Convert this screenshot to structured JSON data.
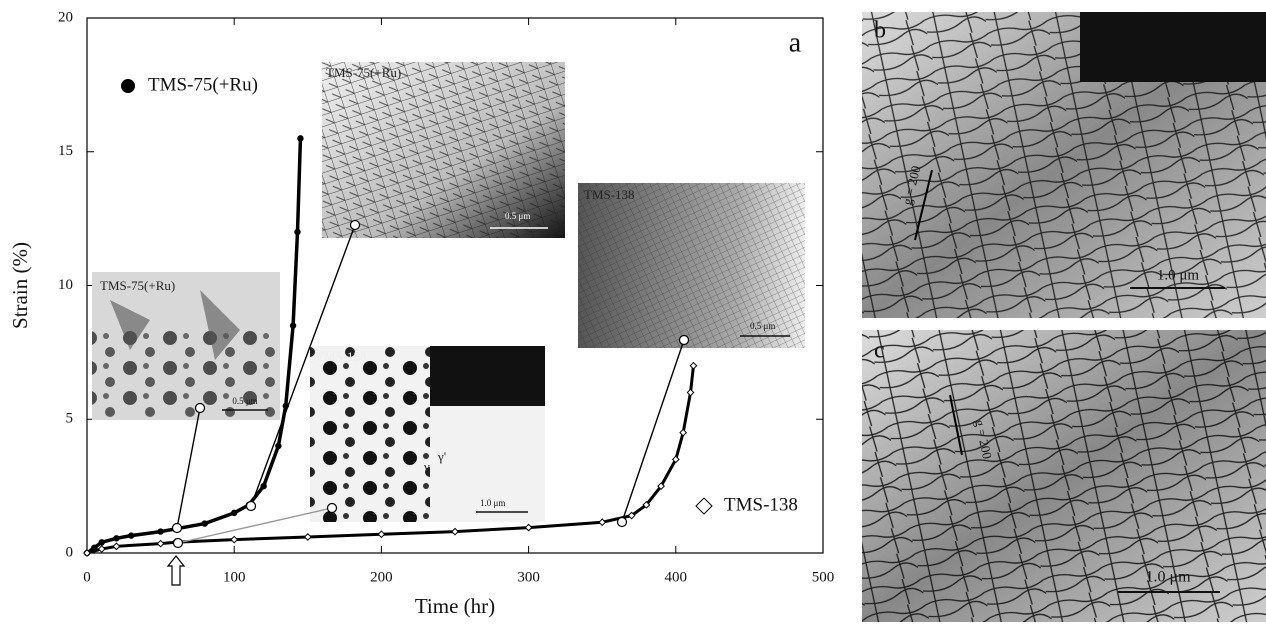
{
  "chart_data": {
    "type": "scatter",
    "panel_label": "a",
    "xlabel": "Time (hr)",
    "ylabel": "Strain (%)",
    "xlim": [
      0,
      500
    ],
    "ylim": [
      0,
      20
    ],
    "xticks": [
      0,
      100,
      200,
      300,
      400,
      500
    ],
    "yticks": [
      0,
      5,
      10,
      15,
      20
    ],
    "series": [
      {
        "name": "TMS-75(+Ru)",
        "color": "#000000",
        "marker": "circle",
        "x": [
          0,
          5,
          10,
          20,
          30,
          50,
          60,
          80,
          100,
          110,
          120,
          130,
          135,
          140,
          143,
          145
        ],
        "values": [
          0,
          0.2,
          0.4,
          0.55,
          0.65,
          0.8,
          0.9,
          1.1,
          1.5,
          1.8,
          2.5,
          4,
          5.5,
          8.5,
          12,
          15.5
        ]
      },
      {
        "name": "TMS-138",
        "color": "#000000",
        "marker": "diamond",
        "x": [
          0,
          10,
          20,
          50,
          60,
          100,
          150,
          200,
          250,
          300,
          350,
          370,
          380,
          390,
          400,
          405,
          410,
          412
        ],
        "values": [
          0,
          0.15,
          0.25,
          0.35,
          0.4,
          0.5,
          0.6,
          0.7,
          0.8,
          0.95,
          1.15,
          1.4,
          1.8,
          2.5,
          3.5,
          4.5,
          6,
          7
        ]
      }
    ]
  },
  "insets": [
    {
      "label": "TMS-75(+Ru)",
      "scale": "0.5 μm"
    },
    {
      "label": "TMS-75(+Ru)",
      "scale": "0.5 μm"
    },
    {
      "label": "TMS-138",
      "scale": "1.0 μm",
      "phases": [
        "γ",
        "γ'"
      ]
    },
    {
      "label": "TMS-138",
      "scale": "0.5 μm"
    }
  ],
  "panels": [
    {
      "label": "b",
      "vector": "g = 200",
      "scale": "1.0 μm"
    },
    {
      "label": "c",
      "vector": "g = 200",
      "scale": "1.0 μm"
    }
  ]
}
